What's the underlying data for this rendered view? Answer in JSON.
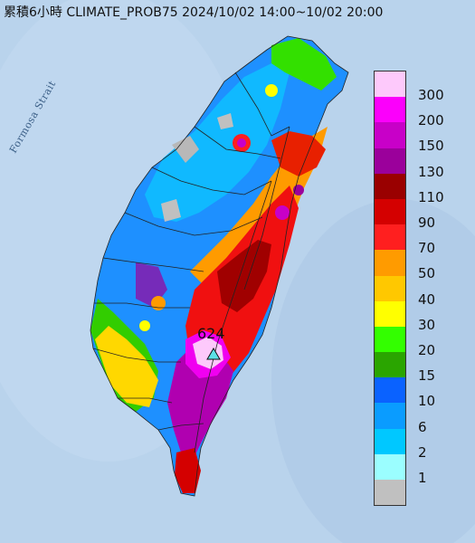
{
  "title": "累積6小時 CLIMATE_PROB75 2024/10/02 14:00~10/02 20:00",
  "strait_label": "Formosa Strait",
  "max_marker": {
    "label": "624",
    "icon": "triangle-marker-icon",
    "color": "#5ce0e6"
  },
  "legend": {
    "items": [
      {
        "label": "300",
        "color": "#fdc9fb"
      },
      {
        "label": "200",
        "color": "#fb00fb"
      },
      {
        "label": "150",
        "color": "#c800c8"
      },
      {
        "label": "130",
        "color": "#9b009b"
      },
      {
        "label": "110",
        "color": "#9a0000"
      },
      {
        "label": "90",
        "color": "#d40000"
      },
      {
        "label": "70",
        "color": "#ff1f1f"
      },
      {
        "label": "50",
        "color": "#ff9b00"
      },
      {
        "label": "40",
        "color": "#ffc800"
      },
      {
        "label": "30",
        "color": "#ffff00"
      },
      {
        "label": "20",
        "color": "#33ff00"
      },
      {
        "label": "15",
        "color": "#2aa500"
      },
      {
        "label": "10",
        "color": "#0a62ff"
      },
      {
        "label": "6",
        "color": "#0a9cff"
      },
      {
        "label": "2",
        "color": "#00c8ff"
      },
      {
        "label": "1",
        "color": "#9bfeff"
      },
      {
        "label": "",
        "color": "#c0c0c0"
      }
    ]
  }
}
